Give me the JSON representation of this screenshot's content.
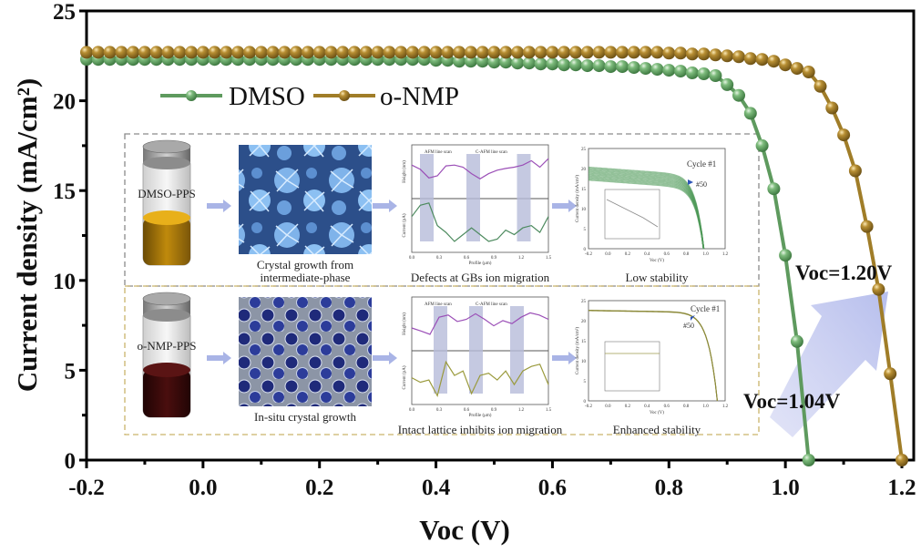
{
  "chart_data": {
    "type": "line",
    "title": "",
    "xlabel": "Voc (V)",
    "ylabel": "Current density (mA/cm²)",
    "xlim": [
      -0.2,
      1.2
    ],
    "ylim": [
      0,
      25
    ],
    "x_ticks": [
      "-0.2",
      "0.0",
      "0.2",
      "0.4",
      "0.6",
      "0.8",
      "1.0",
      "1.2"
    ],
    "x_tick_values": [
      -0.2,
      0.0,
      0.2,
      0.4,
      0.6,
      0.8,
      1.0,
      1.2
    ],
    "y_ticks": [
      "0",
      "5",
      "10",
      "15",
      "20",
      "25"
    ],
    "y_tick_values": [
      0,
      5,
      10,
      15,
      20,
      25
    ],
    "grid": false,
    "legend_position": "top-left",
    "series": [
      {
        "name": "DMSO",
        "color": "#5e9a5e",
        "marker": "sphere",
        "x": [
          -0.2,
          -0.18,
          -0.16,
          -0.14,
          -0.12,
          -0.1,
          -0.08,
          -0.06,
          -0.04,
          -0.02,
          0.0,
          0.02,
          0.04,
          0.06,
          0.08,
          0.1,
          0.12,
          0.14,
          0.16,
          0.18,
          0.2,
          0.22,
          0.24,
          0.26,
          0.28,
          0.3,
          0.32,
          0.34,
          0.36,
          0.38,
          0.4,
          0.42,
          0.44,
          0.46,
          0.48,
          0.5,
          0.52,
          0.54,
          0.56,
          0.58,
          0.6,
          0.62,
          0.64,
          0.66,
          0.68,
          0.7,
          0.72,
          0.74,
          0.76,
          0.78,
          0.8,
          0.82,
          0.84,
          0.86,
          0.88,
          0.9,
          0.92,
          0.94,
          0.96,
          0.98,
          1.0,
          1.02,
          1.04
        ],
        "y": [
          22.3,
          22.3,
          22.3,
          22.3,
          22.3,
          22.3,
          22.3,
          22.3,
          22.3,
          22.3,
          22.3,
          22.3,
          22.3,
          22.3,
          22.3,
          22.3,
          22.3,
          22.3,
          22.3,
          22.3,
          22.3,
          22.3,
          22.3,
          22.3,
          22.3,
          22.3,
          22.3,
          22.3,
          22.3,
          22.3,
          22.25,
          22.25,
          22.2,
          22.2,
          22.2,
          22.15,
          22.15,
          22.1,
          22.1,
          22.05,
          22.05,
          22.0,
          22.0,
          21.95,
          21.95,
          21.9,
          21.9,
          21.85,
          21.8,
          21.75,
          21.7,
          21.65,
          21.55,
          21.5,
          21.4,
          20.9,
          20.3,
          19.3,
          17.5,
          15.1,
          11.4,
          6.6,
          0.0
        ]
      },
      {
        "name": "o-NMP",
        "color": "#a07d28",
        "marker": "sphere",
        "x": [
          -0.2,
          -0.18,
          -0.16,
          -0.14,
          -0.12,
          -0.1,
          -0.08,
          -0.06,
          -0.04,
          -0.02,
          0.0,
          0.02,
          0.04,
          0.06,
          0.08,
          0.1,
          0.12,
          0.14,
          0.16,
          0.18,
          0.2,
          0.22,
          0.24,
          0.26,
          0.28,
          0.3,
          0.32,
          0.34,
          0.36,
          0.38,
          0.4,
          0.42,
          0.44,
          0.46,
          0.48,
          0.5,
          0.52,
          0.54,
          0.56,
          0.58,
          0.6,
          0.62,
          0.64,
          0.66,
          0.68,
          0.7,
          0.72,
          0.74,
          0.76,
          0.78,
          0.8,
          0.82,
          0.84,
          0.86,
          0.88,
          0.9,
          0.92,
          0.94,
          0.96,
          0.98,
          1.0,
          1.02,
          1.04,
          1.06,
          1.08,
          1.1,
          1.12,
          1.14,
          1.16,
          1.18,
          1.2
        ],
        "y": [
          22.7,
          22.7,
          22.7,
          22.7,
          22.7,
          22.7,
          22.7,
          22.7,
          22.7,
          22.7,
          22.7,
          22.7,
          22.7,
          22.7,
          22.7,
          22.7,
          22.7,
          22.7,
          22.7,
          22.7,
          22.7,
          22.7,
          22.7,
          22.7,
          22.7,
          22.7,
          22.7,
          22.7,
          22.7,
          22.7,
          22.7,
          22.7,
          22.7,
          22.7,
          22.7,
          22.7,
          22.7,
          22.7,
          22.7,
          22.7,
          22.7,
          22.7,
          22.7,
          22.7,
          22.7,
          22.7,
          22.7,
          22.7,
          22.7,
          22.7,
          22.65,
          22.65,
          22.6,
          22.6,
          22.55,
          22.5,
          22.45,
          22.35,
          22.3,
          22.2,
          22.0,
          21.8,
          21.6,
          20.8,
          19.6,
          18.1,
          16.1,
          13.0,
          9.5,
          4.8,
          0.0
        ]
      }
    ],
    "annotations": [
      {
        "text": "Voc=1.04V",
        "x": 1.04,
        "y": 0
      },
      {
        "text": "Voc=1.20V",
        "x": 1.2,
        "y": 0
      }
    ]
  },
  "inset": {
    "rows": [
      {
        "jar_label": "DMSO-PPS",
        "jar_liquid_color": "#e8b01a",
        "micro_caption_line1": "Crystal growth from",
        "micro_caption_line2": "intermediate-phase",
        "scan_caption": "Defects at GBs ion migration",
        "scan_legend_afm": "AFM line scan",
        "scan_legend_cafm": "C-AFM line scan",
        "scan_ylabel_top": "Height (nm)",
        "scan_ylabel_bottom": "Current (pA)",
        "scan_xlabel": "Profile (μm)",
        "scan_x_ticks": [
          "0.0",
          "0.3",
          "0.6",
          "0.9",
          "1.2",
          "1.5"
        ],
        "stab_caption": "Low stability",
        "stab_cycle_first": "Cycle #1",
        "stab_cycle_last": "#50",
        "stab_ylabel": "Current density (mA/cm²)",
        "stab_xlabel": "Voc (V)",
        "stab_x_ticks": [
          "-0.2",
          "0.0",
          "0.2",
          "0.4",
          "0.6",
          "0.8",
          "1.0",
          "1.2"
        ],
        "stab_y_ticks": [
          "0",
          "5",
          "10",
          "15",
          "20",
          "25"
        ]
      },
      {
        "jar_label": "o-NMP-PPS",
        "jar_liquid_color": "#5a1414",
        "micro_caption_line1": "In-situ crystal growth",
        "micro_caption_line2": "",
        "scan_caption": "Intact lattice inhibits ion migration",
        "scan_legend_afm": "AFM line scan",
        "scan_legend_cafm": "C-AFM line scan",
        "scan_ylabel_top": "Height (nm)",
        "scan_ylabel_bottom": "Current (pA)",
        "scan_xlabel": "Profile (μm)",
        "scan_x_ticks": [
          "0.0",
          "0.3",
          "0.6",
          "0.9",
          "1.2",
          "1.5"
        ],
        "stab_caption": "Enhanced stability",
        "stab_cycle_first": "Cycle #1",
        "stab_cycle_last": "#50",
        "stab_ylabel": "Current density (mA/cm²)",
        "stab_xlabel": "Voc (V)",
        "stab_x_ticks": [
          "-0.2",
          "0.0",
          "0.2",
          "0.4",
          "0.6",
          "0.8",
          "1.0",
          "1.2"
        ],
        "stab_y_ticks": [
          "0",
          "5",
          "10",
          "15",
          "20",
          "25"
        ]
      }
    ]
  }
}
